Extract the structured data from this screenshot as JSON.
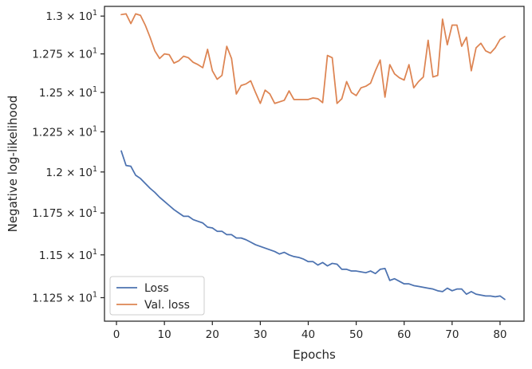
{
  "chart_data": {
    "type": "line",
    "xlabel": "Epochs",
    "ylabel": "Negative log-likelihood",
    "xlim": [
      -2.5,
      85
    ],
    "ylim": [
      11.115,
      13.065
    ],
    "y_scale": "log",
    "grid": false,
    "legend_position": "lower-left",
    "x_ticks": [
      0,
      10,
      20,
      30,
      40,
      50,
      60,
      70,
      80
    ],
    "x_tick_labels": [
      "0",
      "10",
      "20",
      "30",
      "40",
      "50",
      "60",
      "70",
      "80"
    ],
    "y_ticks": [
      {
        "value": 11.25,
        "mantissa": "1.125",
        "base": "10",
        "exponent": "1"
      },
      {
        "value": 11.5,
        "mantissa": "1.15",
        "base": "10",
        "exponent": "1"
      },
      {
        "value": 11.75,
        "mantissa": "1.175",
        "base": "10",
        "exponent": "1"
      },
      {
        "value": 12.0,
        "mantissa": "1.2",
        "base": "10",
        "exponent": "1"
      },
      {
        "value": 12.25,
        "mantissa": "1.225",
        "base": "10",
        "exponent": "1"
      },
      {
        "value": 12.5,
        "mantissa": "1.25",
        "base": "10",
        "exponent": "1"
      },
      {
        "value": 12.75,
        "mantissa": "1.275",
        "base": "10",
        "exponent": "1"
      },
      {
        "value": 13.0,
        "mantissa": "1.3",
        "base": "10",
        "exponent": "1"
      }
    ],
    "series": [
      {
        "name": "Loss",
        "color": "#4c72b0",
        "x": [
          1,
          2,
          3,
          4,
          5,
          6,
          7,
          8,
          9,
          10,
          11,
          12,
          13,
          14,
          15,
          16,
          17,
          18,
          19,
          20,
          21,
          22,
          23,
          24,
          25,
          26,
          27,
          28,
          29,
          30,
          31,
          32,
          33,
          34,
          35,
          36,
          37,
          38,
          39,
          40,
          41,
          42,
          43,
          44,
          45,
          46,
          47,
          48,
          49,
          50,
          51,
          52,
          53,
          54,
          55,
          56,
          57,
          58,
          59,
          60,
          61,
          62,
          63,
          64,
          65,
          66,
          67,
          68,
          69,
          70,
          71,
          72,
          73,
          74,
          75,
          76,
          77,
          78,
          79,
          80,
          81
        ],
        "values": [
          12.13,
          12.04,
          12.035,
          11.98,
          11.96,
          11.93,
          11.9,
          11.875,
          11.845,
          11.82,
          11.795,
          11.77,
          11.75,
          11.73,
          11.73,
          11.71,
          11.7,
          11.69,
          11.665,
          11.66,
          11.64,
          11.64,
          11.62,
          11.62,
          11.6,
          11.6,
          11.59,
          11.575,
          11.56,
          11.55,
          11.54,
          11.53,
          11.52,
          11.505,
          11.515,
          11.5,
          11.49,
          11.485,
          11.475,
          11.46,
          11.46,
          11.44,
          11.455,
          11.435,
          11.45,
          11.445,
          11.415,
          11.415,
          11.405,
          11.405,
          11.4,
          11.395,
          11.405,
          11.39,
          11.415,
          11.42,
          11.35,
          11.36,
          11.345,
          11.33,
          11.33,
          11.32,
          11.315,
          11.31,
          11.305,
          11.3,
          11.29,
          11.285,
          11.305,
          11.29,
          11.3,
          11.3,
          11.27,
          11.285,
          11.27,
          11.265,
          11.26,
          11.26,
          11.255,
          11.26,
          11.24
        ]
      },
      {
        "name": "Val. loss",
        "color": "#dd8452",
        "x": [
          1,
          2,
          3,
          4,
          5,
          6,
          7,
          8,
          9,
          10,
          11,
          12,
          13,
          14,
          15,
          16,
          17,
          18,
          19,
          20,
          21,
          22,
          23,
          24,
          25,
          26,
          27,
          28,
          29,
          30,
          31,
          32,
          33,
          34,
          35,
          36,
          37,
          38,
          39,
          40,
          41,
          42,
          43,
          44,
          45,
          46,
          47,
          48,
          49,
          50,
          51,
          52,
          53,
          54,
          55,
          56,
          57,
          58,
          59,
          60,
          61,
          62,
          63,
          64,
          65,
          66,
          67,
          68,
          69,
          70,
          71,
          72,
          73,
          74,
          75,
          76,
          77,
          78,
          79,
          80,
          81
        ],
        "values": [
          13.01,
          13.015,
          12.95,
          13.015,
          13.005,
          12.94,
          12.86,
          12.77,
          12.72,
          12.75,
          12.745,
          12.69,
          12.705,
          12.735,
          12.725,
          12.695,
          12.68,
          12.66,
          12.78,
          12.64,
          12.585,
          12.61,
          12.8,
          12.72,
          12.49,
          12.545,
          12.555,
          12.575,
          12.5,
          12.43,
          12.515,
          12.49,
          12.43,
          12.44,
          12.45,
          12.51,
          12.455,
          12.455,
          12.455,
          12.455,
          12.465,
          12.46,
          12.435,
          12.74,
          12.725,
          12.43,
          12.46,
          12.57,
          12.5,
          12.48,
          12.53,
          12.54,
          12.56,
          12.64,
          12.71,
          12.47,
          12.68,
          12.62,
          12.595,
          12.58,
          12.68,
          12.53,
          12.57,
          12.6,
          12.84,
          12.6,
          12.61,
          12.98,
          12.81,
          12.94,
          12.94,
          12.8,
          12.86,
          12.64,
          12.79,
          12.82,
          12.77,
          12.755,
          12.79,
          12.845,
          12.865
        ]
      }
    ]
  }
}
